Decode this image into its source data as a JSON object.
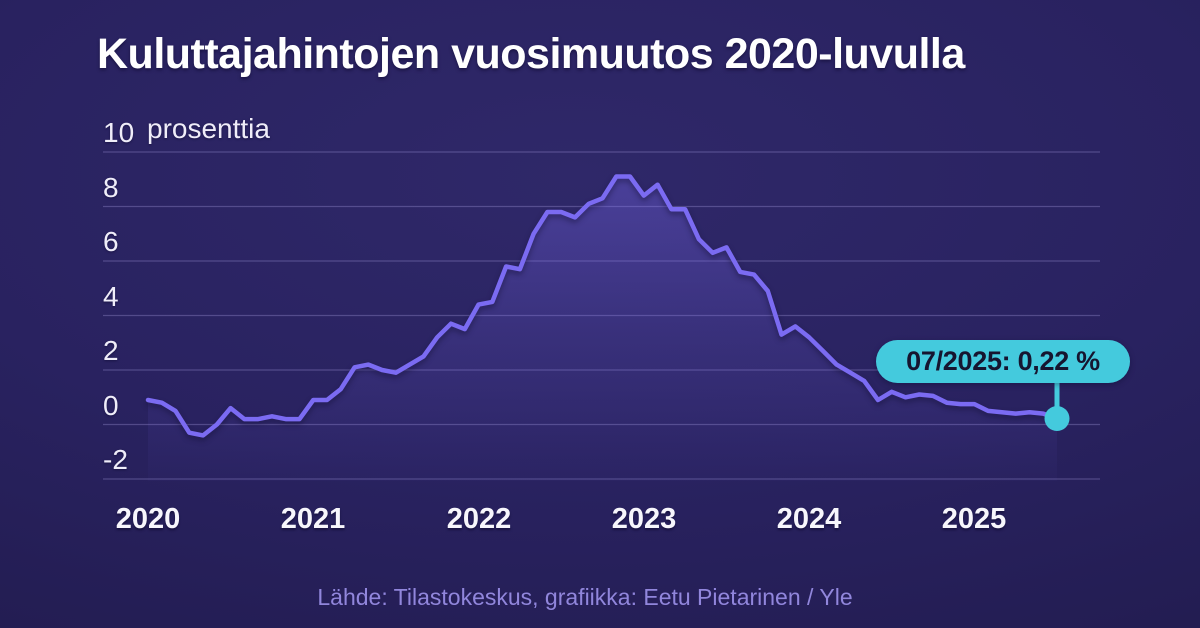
{
  "title": "Kuluttajahintojen vuosimuutos 2020-luvulla",
  "footer": "Lähde: Tilastokeskus, grafiikka: Eetu Pietarinen / Yle",
  "colors": {
    "background": "#282159",
    "line": "#7b6bf2",
    "accent": "#44cadd",
    "grid": "#4b4487",
    "text": "#ffffff",
    "footer_text": "#9186dc",
    "callout_text": "#16152f"
  },
  "chart_data": {
    "type": "line",
    "title": "Kuluttajahintojen vuosimuutos 2020-luvulla",
    "unit_label": "prosenttia",
    "xlabel": "",
    "ylabel": "prosenttia",
    "frequency": "monthly",
    "x_range": [
      "01/2020",
      "07/2025"
    ],
    "ylim": [
      -2.7,
      10.2
    ],
    "grid": true,
    "legend": "none",
    "y_ticks": [
      10,
      8,
      6,
      4,
      2,
      0,
      -2
    ],
    "years": [
      {
        "year": "2020",
        "values": [
          0.9,
          0.8,
          0.5,
          -0.3,
          -0.4,
          0.0,
          0.6,
          0.2,
          0.2,
          0.3,
          0.2,
          0.2
        ]
      },
      {
        "year": "2021",
        "values": [
          0.9,
          0.9,
          1.3,
          2.1,
          2.2,
          2.0,
          1.9,
          2.2,
          2.5,
          3.2,
          3.7,
          3.5
        ]
      },
      {
        "year": "2022",
        "values": [
          4.4,
          4.5,
          5.8,
          5.7,
          7.0,
          7.8,
          7.8,
          7.6,
          8.1,
          8.3,
          9.1,
          9.1
        ]
      },
      {
        "year": "2023",
        "values": [
          8.4,
          8.8,
          7.9,
          7.9,
          6.8,
          6.3,
          6.5,
          5.6,
          5.5,
          4.9,
          3.3,
          3.6
        ]
      },
      {
        "year": "2024",
        "values": [
          3.2,
          2.7,
          2.2,
          1.9,
          1.6,
          0.9,
          1.2,
          1.0,
          1.1,
          1.05,
          0.8,
          0.75
        ]
      },
      {
        "year": "2025",
        "values": [
          0.75,
          0.5,
          0.45,
          0.4,
          0.45,
          0.4,
          0.22
        ]
      }
    ],
    "callout": {
      "label": "07/2025: 0,22 %",
      "month": "07/2025",
      "value": 0.22
    }
  }
}
